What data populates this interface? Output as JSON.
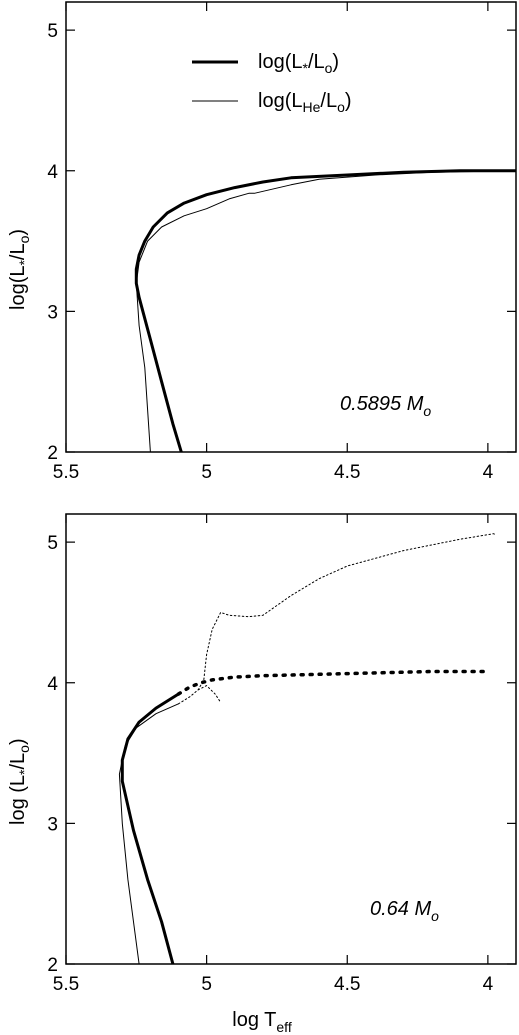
{
  "chart_data": [
    {
      "type": "line",
      "x_axis": {
        "reversed": true,
        "lim": [
          5.5,
          3.9
        ],
        "ticks": [
          5.5,
          5,
          4.5,
          4
        ],
        "tick_labels": [
          "5.5",
          "5",
          "4.5",
          "4"
        ],
        "label": ""
      },
      "y_axis": {
        "lim": [
          2,
          5.2
        ],
        "ticks": [
          2,
          3,
          4,
          5
        ],
        "tick_labels": [
          "2",
          "3",
          "4",
          "5"
        ],
        "label_main": "log(L",
        "label_sub1": "*",
        "label_mid": "/L",
        "label_sub2": "o",
        "label_end": ")"
      },
      "grid": false,
      "legend": {
        "position": "top-center",
        "entries": [
          {
            "main": "log(L",
            "sub": "*",
            "mid": "/L",
            "sub2": "o",
            "end": ")",
            "style": "thick"
          },
          {
            "main": "log(L",
            "sub": "He",
            "mid": "/L",
            "sub2": "o",
            "end": ")",
            "style": "thin"
          }
        ]
      },
      "annotation": {
        "main": "0.5895 M",
        "sub": "o"
      },
      "series": [
        {
          "style": "thick",
          "points": [
            [
              5.09,
              2.0
            ],
            [
              5.12,
              2.2
            ],
            [
              5.16,
              2.5
            ],
            [
              5.2,
              2.8
            ],
            [
              5.24,
              3.1
            ],
            [
              5.25,
              3.2
            ],
            [
              5.25,
              3.3
            ],
            [
              5.24,
              3.4
            ],
            [
              5.22,
              3.5
            ],
            [
              5.19,
              3.6
            ],
            [
              5.14,
              3.7
            ],
            [
              5.08,
              3.77
            ],
            [
              5.0,
              3.83
            ],
            [
              4.9,
              3.88
            ],
            [
              4.8,
              3.92
            ],
            [
              4.7,
              3.95
            ],
            [
              4.5,
              3.97
            ],
            [
              4.3,
              3.99
            ],
            [
              4.1,
              4.0
            ],
            [
              3.9,
              4.0
            ]
          ]
        },
        {
          "style": "thin",
          "points": [
            [
              5.2,
              2.0
            ],
            [
              5.21,
              2.3
            ],
            [
              5.22,
              2.6
            ],
            [
              5.24,
              2.9
            ],
            [
              5.25,
              3.2
            ],
            [
              5.24,
              3.35
            ],
            [
              5.21,
              3.5
            ],
            [
              5.16,
              3.6
            ],
            [
              5.08,
              3.68
            ],
            [
              5.0,
              3.73
            ],
            [
              4.92,
              3.8
            ],
            [
              4.85,
              3.84
            ],
            [
              4.83,
              3.84
            ],
            [
              4.7,
              3.9
            ],
            [
              4.6,
              3.94
            ],
            [
              4.4,
              3.97
            ],
            [
              4.2,
              3.99
            ],
            [
              3.9,
              4.0
            ]
          ]
        }
      ]
    },
    {
      "type": "line",
      "x_axis": {
        "reversed": true,
        "lim": [
          5.5,
          3.9
        ],
        "ticks": [
          5.5,
          5,
          4.5,
          4
        ],
        "tick_labels": [
          "5.5",
          "5",
          "4.5",
          "4"
        ],
        "label_main": "log T",
        "label_sub": "eff"
      },
      "y_axis": {
        "lim": [
          2,
          5.2
        ],
        "ticks": [
          2,
          3,
          4,
          5
        ],
        "tick_labels": [
          "2",
          "3",
          "4",
          "5"
        ],
        "label_main": "log (L",
        "label_sub1": "*",
        "label_mid": "/L",
        "label_sub2": "o",
        "label_end": ")"
      },
      "grid": false,
      "annotation": {
        "main": "0.64 M",
        "sub": "o"
      },
      "series": [
        {
          "style": "thick",
          "points": [
            [
              5.12,
              2.0
            ],
            [
              5.16,
              2.3
            ],
            [
              5.21,
              2.6
            ],
            [
              5.26,
              2.95
            ],
            [
              5.3,
              3.3
            ],
            [
              5.3,
              3.45
            ],
            [
              5.28,
              3.6
            ],
            [
              5.24,
              3.72
            ],
            [
              5.18,
              3.82
            ],
            [
              5.1,
              3.92
            ]
          ]
        },
        {
          "style": "thick-dotted",
          "points": [
            [
              5.1,
              3.92
            ],
            [
              5.06,
              3.97
            ],
            [
              5.02,
              4.0
            ],
            [
              4.98,
              4.02
            ],
            [
              4.9,
              4.04
            ],
            [
              4.8,
              4.05
            ],
            [
              4.6,
              4.06
            ],
            [
              4.4,
              4.07
            ],
            [
              4.2,
              4.08
            ],
            [
              4.0,
              4.08
            ]
          ]
        },
        {
          "style": "thin",
          "points": [
            [
              5.24,
              2.0
            ],
            [
              5.26,
              2.3
            ],
            [
              5.28,
              2.6
            ],
            [
              5.3,
              3.0
            ],
            [
              5.31,
              3.35
            ],
            [
              5.29,
              3.55
            ],
            [
              5.25,
              3.68
            ],
            [
              5.18,
              3.78
            ],
            [
              5.1,
              3.85
            ]
          ]
        },
        {
          "style": "thin-dotted",
          "points": [
            [
              5.1,
              3.85
            ],
            [
              5.06,
              3.9
            ],
            [
              5.03,
              3.95
            ],
            [
              5.01,
              4.02
            ],
            [
              5.0,
              4.2
            ],
            [
              4.98,
              4.38
            ],
            [
              4.95,
              4.5
            ],
            [
              4.92,
              4.48
            ],
            [
              4.85,
              4.47
            ],
            [
              4.8,
              4.48
            ],
            [
              4.7,
              4.62
            ],
            [
              4.6,
              4.74
            ],
            [
              4.5,
              4.83
            ],
            [
              4.3,
              4.94
            ],
            [
              4.1,
              5.02
            ],
            [
              3.98,
              5.06
            ],
            [
              3.97,
              5.05
            ]
          ]
        },
        {
          "style": "thin-dotted",
          "points": [
            [
              5.03,
              3.95
            ],
            [
              5.0,
              3.98
            ],
            [
              4.97,
              3.92
            ],
            [
              4.95,
              3.86
            ]
          ]
        }
      ]
    }
  ]
}
